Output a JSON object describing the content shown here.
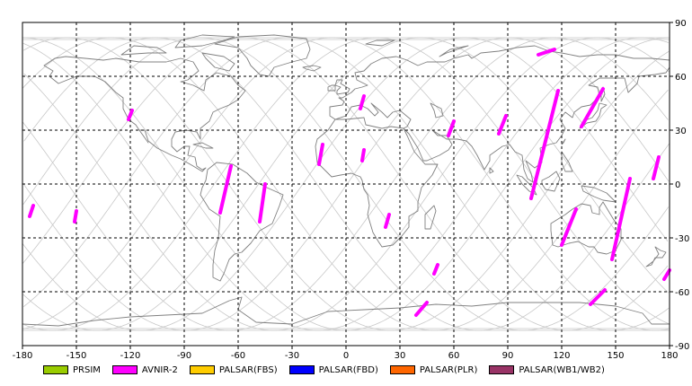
{
  "chart_data": {
    "type": "map",
    "projection": "equirectangular",
    "xlim": [
      -180,
      180
    ],
    "ylim": [
      -90,
      90
    ],
    "x_ticks": [
      "-180",
      "-150",
      "-120",
      "-90",
      "-60",
      "-30",
      "0",
      "30",
      "60",
      "90",
      "120",
      "150",
      "180"
    ],
    "y_ticks": [
      "90",
      "60",
      "30",
      "0",
      "-30",
      "-60",
      "-90"
    ],
    "grid": "dashed",
    "colors": {
      "coastline": "#808080",
      "orbit": "#c8c8c8",
      "swath": "#ff00ff",
      "grid": "#000000"
    },
    "legend": [
      {
        "label": "PRSIM",
        "color": "#99cc00"
      },
      {
        "label": "AVNIR-2",
        "color": "#ff00ff"
      },
      {
        "label": "PALSAR(FBS)",
        "color": "#ffcc00"
      },
      {
        "label": "PALSAR(FBD)",
        "color": "#0000ff"
      },
      {
        "label": "PALSAR(PLR)",
        "color": "#ff6600"
      },
      {
        "label": "PALSAR(WB1/WB2)",
        "color": "#993366"
      }
    ],
    "swaths": [
      {
        "lon_start": 107,
        "lat_start": 72,
        "lon_end": 116,
        "lat_end": 75
      },
      {
        "lon_start": -121,
        "lat_start": 36,
        "lon_end": -119,
        "lat_end": 41
      },
      {
        "lon_start": 8,
        "lat_start": 42,
        "lon_end": 10,
        "lat_end": 49
      },
      {
        "lon_start": 57,
        "lat_start": 27,
        "lon_end": 60,
        "lat_end": 35
      },
      {
        "lon_start": 85,
        "lat_start": 28,
        "lon_end": 89,
        "lat_end": 38
      },
      {
        "lon_start": 118,
        "lat_start": 52,
        "lon_end": 103,
        "lat_end": -8
      },
      {
        "lon_start": 143,
        "lat_start": 53,
        "lon_end": 131,
        "lat_end": 32
      },
      {
        "lon_start": -15,
        "lat_start": 11,
        "lon_end": -13,
        "lat_end": 22
      },
      {
        "lon_start": 9,
        "lat_start": 13,
        "lon_end": 10,
        "lat_end": 19
      },
      {
        "lon_start": -64,
        "lat_start": 10,
        "lon_end": -70,
        "lat_end": -16
      },
      {
        "lon_start": -45,
        "lat_start": 0,
        "lon_end": -48,
        "lat_end": -21
      },
      {
        "lon_start": -174,
        "lat_start": -12,
        "lon_end": -176,
        "lat_end": -18
      },
      {
        "lon_start": -150,
        "lat_start": -15,
        "lon_end": -151,
        "lat_end": -21
      },
      {
        "lon_start": 24,
        "lat_start": -17,
        "lon_end": 22,
        "lat_end": -24
      },
      {
        "lon_start": 51,
        "lat_start": -45,
        "lon_end": 49,
        "lat_end": -50
      },
      {
        "lon_start": 45,
        "lat_start": -66,
        "lon_end": 39,
        "lat_end": -73
      },
      {
        "lon_start": 128,
        "lat_start": -14,
        "lon_end": 120,
        "lat_end": -34
      },
      {
        "lon_start": 158,
        "lat_start": 3,
        "lon_end": 148,
        "lat_end": -42
      },
      {
        "lon_start": 174,
        "lat_start": 15,
        "lon_end": 171,
        "lat_end": 3
      },
      {
        "lon_start": 180,
        "lat_start": -48,
        "lon_end": 177,
        "lat_end": -53
      },
      {
        "lon_start": 144,
        "lat_start": -59,
        "lon_end": 136,
        "lat_end": -67
      }
    ]
  }
}
